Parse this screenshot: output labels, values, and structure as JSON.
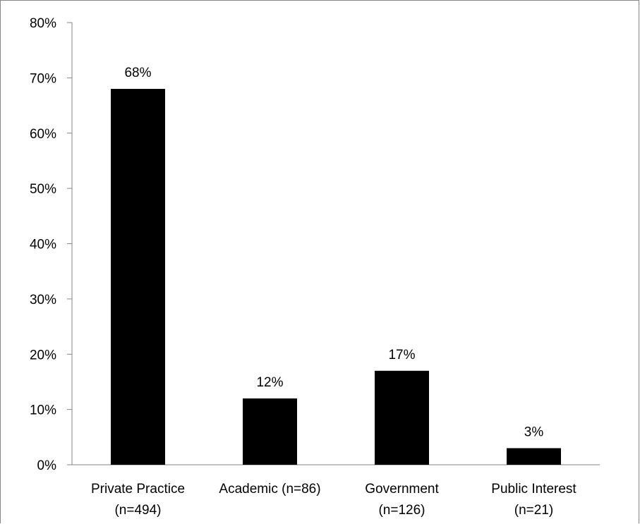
{
  "chart_data": {
    "type": "bar",
    "categories": [
      [
        "Private Practice",
        "(n=494)"
      ],
      [
        "Academic (n=86)"
      ],
      [
        "Government",
        "(n=126)"
      ],
      [
        "Public Interest",
        "(n=21)"
      ]
    ],
    "values": [
      68,
      12,
      17,
      3
    ],
    "data_labels": [
      "68%",
      "12%",
      "17%",
      "3%"
    ],
    "ylim": [
      0,
      80
    ],
    "yticks": [
      {
        "value": 0,
        "label": "0%"
      },
      {
        "value": 10,
        "label": "10%"
      },
      {
        "value": 20,
        "label": "20%"
      },
      {
        "value": 30,
        "label": "30%"
      },
      {
        "value": 40,
        "label": "40%"
      },
      {
        "value": 50,
        "label": "50%"
      },
      {
        "value": 60,
        "label": "60%"
      },
      {
        "value": 70,
        "label": "70%"
      },
      {
        "value": 80,
        "label": "80%"
      }
    ],
    "grid": false,
    "legend": "none",
    "bar_color": "#000000",
    "axis_color": "#868686"
  }
}
